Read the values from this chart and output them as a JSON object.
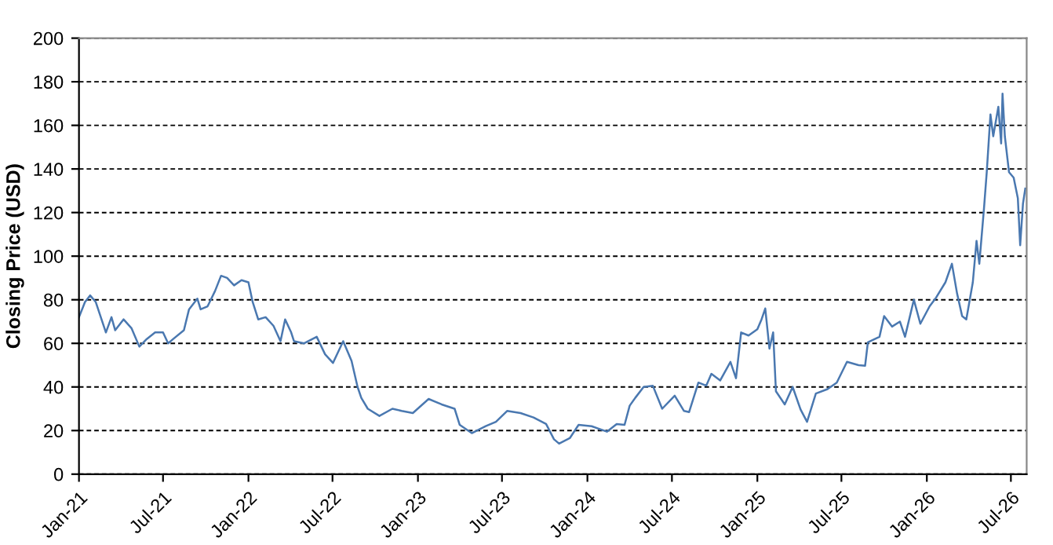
{
  "chart_data": {
    "type": "line",
    "ylabel": "Closing Price (USD)",
    "x": [
      "2021-01-01",
      "2021-01-14",
      "2021-01-25",
      "2021-02-06",
      "2021-02-28",
      "2021-03-12",
      "2021-03-20",
      "2021-04-07",
      "2021-04-24",
      "2021-05-11",
      "2021-05-27",
      "2021-06-14",
      "2021-07-01",
      "2021-07-12",
      "2021-07-23",
      "2021-08-15",
      "2021-08-26",
      "2021-09-13",
      "2021-09-20",
      "2021-10-05",
      "2021-10-21",
      "2021-11-03",
      "2021-11-16",
      "2021-12-01",
      "2021-12-17",
      "2022-01-01",
      "2022-01-10",
      "2022-01-22",
      "2022-02-07",
      "2022-02-24",
      "2022-03-11",
      "2022-03-21",
      "2022-04-03",
      "2022-04-09",
      "2022-05-01",
      "2022-05-28",
      "2022-06-15",
      "2022-07-02",
      "2022-07-24",
      "2022-08-11",
      "2022-08-24",
      "2022-09-01",
      "2022-09-15",
      "2022-10-10",
      "2022-11-07",
      "2022-11-27",
      "2022-12-21",
      "2023-01-24",
      "2023-02-21",
      "2023-03-21",
      "2023-04-01",
      "2023-04-27",
      "2023-05-27",
      "2023-06-18",
      "2023-07-12",
      "2023-08-10",
      "2023-09-07",
      "2023-10-04",
      "2023-10-21",
      "2023-11-01",
      "2023-11-24",
      "2023-12-13",
      "2024-01-10",
      "2024-02-12",
      "2024-03-04",
      "2024-03-21",
      "2024-04-01",
      "2024-04-13",
      "2024-05-01",
      "2024-05-21",
      "2024-06-10",
      "2024-07-07",
      "2024-07-27",
      "2024-08-07",
      "2024-08-27",
      "2024-09-13",
      "2024-09-24",
      "2024-10-13",
      "2024-11-04",
      "2024-11-16",
      "2024-11-27",
      "2024-12-13",
      "2025-01-01",
      "2025-01-10",
      "2025-01-18",
      "2025-01-27",
      "2025-02-04",
      "2025-02-10",
      "2025-03-01",
      "2025-03-18",
      "2025-04-04",
      "2025-04-18",
      "2025-05-07",
      "2025-06-01",
      "2025-06-21",
      "2025-07-13",
      "2025-08-07",
      "2025-08-21",
      "2025-08-27",
      "2025-09-21",
      "2025-10-01",
      "2025-10-18",
      "2025-11-04",
      "2025-11-15",
      "2025-12-04",
      "2025-12-18",
      "2026-01-07",
      "2026-01-21",
      "2026-02-10",
      "2026-02-24",
      "2026-03-07",
      "2026-03-18",
      "2026-03-27",
      "2026-04-10",
      "2026-04-18",
      "2026-04-24",
      "2026-05-04",
      "2026-05-10",
      "2026-05-18",
      "2026-05-24",
      "2026-06-04",
      "2026-06-10",
      "2026-06-13",
      "2026-06-18",
      "2026-06-27",
      "2026-07-07",
      "2026-07-16",
      "2026-07-21",
      "2026-07-27",
      "2026-08-01"
    ],
    "series": [
      {
        "color": "#4a78b0",
        "values": [
          72,
          79,
          82,
          79,
          65,
          72,
          66,
          71,
          67,
          58.5,
          62,
          65,
          65,
          60,
          62,
          66,
          75.6,
          80.5,
          75.6,
          77,
          84,
          91,
          90,
          86.6,
          89,
          88,
          79,
          71,
          72,
          68,
          61,
          71,
          65,
          61,
          60,
          63,
          55,
          51,
          61,
          52,
          40,
          35,
          30,
          26.7,
          30,
          29,
          28,
          34.5,
          32,
          30,
          22.6,
          18.8,
          22,
          24,
          29,
          28,
          26,
          23,
          16,
          14,
          16.5,
          22.6,
          22,
          19.5,
          23,
          22.6,
          31.4,
          35,
          40,
          40.5,
          30,
          36,
          29,
          28.5,
          42,
          40.6,
          46,
          43,
          51.5,
          44,
          65,
          63.6,
          66.5,
          71,
          76,
          57.6,
          65,
          38,
          32,
          40,
          29.7,
          24,
          37,
          39,
          42,
          51.5,
          50,
          49.7,
          60.5,
          63,
          72.5,
          67.7,
          70,
          63,
          80,
          69,
          77,
          81,
          88,
          96.5,
          83,
          72.5,
          71,
          88,
          107,
          96.5,
          121.7,
          138.5,
          165,
          155,
          168.5,
          151.7,
          174.5,
          155,
          138.5,
          136,
          126.5,
          105,
          124,
          131
        ]
      }
    ],
    "xlim": [
      "2021-01-01",
      "2026-08-04"
    ],
    "xticks": [
      {
        "value": "2021-01-01",
        "label": "Jan-21"
      },
      {
        "value": "2021-07-01",
        "label": "Jul-21"
      },
      {
        "value": "2022-01-01",
        "label": "Jan-22"
      },
      {
        "value": "2022-07-01",
        "label": "Jul-22"
      },
      {
        "value": "2023-01-01",
        "label": "Jan-23"
      },
      {
        "value": "2023-07-01",
        "label": "Jul-23"
      },
      {
        "value": "2024-01-01",
        "label": "Jan-24"
      },
      {
        "value": "2024-07-01",
        "label": "Jul-24"
      },
      {
        "value": "2025-01-01",
        "label": "Jan-25"
      },
      {
        "value": "2025-07-01",
        "label": "Jul-25"
      },
      {
        "value": "2026-01-01",
        "label": "Jan-26"
      },
      {
        "value": "2026-07-01",
        "label": "Jul-26"
      }
    ],
    "ylim": [
      0,
      200
    ],
    "yticks": [
      0,
      20,
      40,
      60,
      80,
      100,
      120,
      140,
      160,
      180,
      200
    ],
    "grid": "y",
    "marker": "none",
    "line_style": "solid"
  }
}
